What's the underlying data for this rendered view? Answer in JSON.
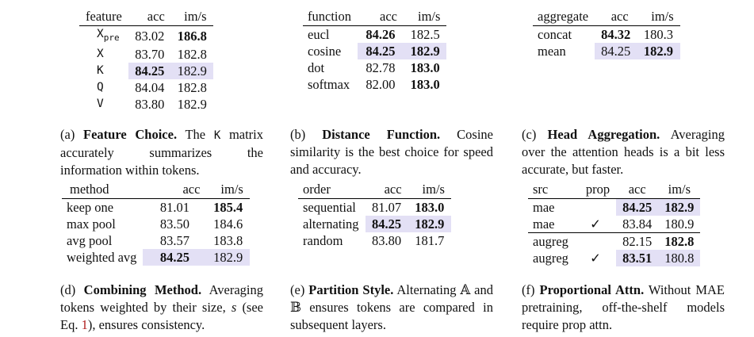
{
  "a": {
    "headers": [
      "feature",
      "acc",
      "im/s"
    ],
    "rows": [
      {
        "name": "X",
        "sub": "pre",
        "acc": "83.02",
        "ims": "186.8",
        "acc_bold": false,
        "ims_bold": true,
        "hl": false
      },
      {
        "name": "X",
        "sub": "",
        "acc": "83.70",
        "ims": "182.8",
        "acc_bold": false,
        "ims_bold": false,
        "hl": false
      },
      {
        "name": "K",
        "sub": "",
        "acc": "84.25",
        "ims": "182.9",
        "acc_bold": true,
        "ims_bold": false,
        "hl": true
      },
      {
        "name": "Q",
        "sub": "",
        "acc": "84.04",
        "ims": "182.8",
        "acc_bold": false,
        "ims_bold": false,
        "hl": false
      },
      {
        "name": "V",
        "sub": "",
        "acc": "83.80",
        "ims": "182.9",
        "acc_bold": false,
        "ims_bold": false,
        "hl": false
      }
    ],
    "cap_label": "(a)",
    "cap_title": "Feature Choice.",
    "cap_pre": "The",
    "cap_code": "K",
    "cap_post": "matrix accurately summarizes the information within tokens."
  },
  "b": {
    "headers": [
      "function",
      "acc",
      "im/s"
    ],
    "rows": [
      {
        "name": "eucl",
        "acc": "84.26",
        "ims": "182.5",
        "acc_bold": true,
        "ims_bold": false,
        "hl": false
      },
      {
        "name": "cosine",
        "acc": "84.25",
        "ims": "182.9",
        "acc_bold": true,
        "ims_bold": true,
        "hl": true
      },
      {
        "name": "dot",
        "acc": "82.78",
        "ims": "183.0",
        "acc_bold": false,
        "ims_bold": true,
        "hl": false
      },
      {
        "name": "softmax",
        "acc": "82.00",
        "ims": "183.0",
        "acc_bold": false,
        "ims_bold": true,
        "hl": false
      }
    ],
    "cap_label": "(b)",
    "cap_title": "Distance Function.",
    "cap_text": "Cosine similarity is the best choice for speed and accuracy."
  },
  "c": {
    "headers": [
      "aggregate",
      "acc",
      "im/s"
    ],
    "rows": [
      {
        "name": "concat",
        "acc": "84.32",
        "ims": "180.3",
        "acc_bold": true,
        "ims_bold": false,
        "hl": false
      },
      {
        "name": "mean",
        "acc": "84.25",
        "ims": "182.9",
        "acc_bold": false,
        "ims_bold": true,
        "hl": true
      }
    ],
    "cap_label": "(c)",
    "cap_title": "Head Aggregation.",
    "cap_text": "Averaging over the attention heads is a bit less accurate, but faster."
  },
  "d": {
    "headers": [
      "method",
      "acc",
      "im/s"
    ],
    "rows": [
      {
        "name": "keep one",
        "acc": "81.01",
        "ims": "185.4",
        "acc_bold": false,
        "ims_bold": true,
        "hl": false
      },
      {
        "name": "max pool",
        "acc": "83.50",
        "ims": "184.6",
        "acc_bold": false,
        "ims_bold": false,
        "hl": false
      },
      {
        "name": "avg pool",
        "acc": "83.57",
        "ims": "183.8",
        "acc_bold": false,
        "ims_bold": false,
        "hl": false
      },
      {
        "name": "weighted avg",
        "acc": "84.25",
        "ims": "182.9",
        "acc_bold": true,
        "ims_bold": false,
        "hl": true
      }
    ],
    "cap_label": "(d)",
    "cap_title": "Combining Method.",
    "cap_pre": "Averaging tokens weighted by their size,",
    "cap_var": "s",
    "cap_mid": "(see Eq.",
    "cap_ref": "1",
    "cap_post": "), ensures consistency."
  },
  "e": {
    "headers": [
      "order",
      "acc",
      "im/s"
    ],
    "rows": [
      {
        "name": "sequential",
        "acc": "81.07",
        "ims": "183.0",
        "acc_bold": false,
        "ims_bold": true,
        "hl": false
      },
      {
        "name": "alternating",
        "acc": "84.25",
        "ims": "182.9",
        "acc_bold": true,
        "ims_bold": true,
        "hl": true
      },
      {
        "name": "random",
        "acc": "83.80",
        "ims": "181.7",
        "acc_bold": false,
        "ims_bold": false,
        "hl": false
      }
    ],
    "cap_label": "(e)",
    "cap_title": "Partition Style.",
    "cap_text": "Alternating 𝔸 and 𝔹 ensures tokens are compared in subsequent layers."
  },
  "f": {
    "headers": [
      "src",
      "prop",
      "acc",
      "im/s"
    ],
    "rows": [
      {
        "name": "mae",
        "prop": "",
        "acc": "84.25",
        "ims": "182.9",
        "acc_bold": true,
        "ims_bold": true,
        "hl": true
      },
      {
        "name": "mae",
        "prop": "✓",
        "acc": "83.84",
        "ims": "180.9",
        "acc_bold": false,
        "ims_bold": false,
        "hl": false
      },
      {
        "name": "augreg",
        "prop": "",
        "acc": "82.15",
        "ims": "182.8",
        "acc_bold": false,
        "ims_bold": true,
        "hl": false
      },
      {
        "name": "augreg",
        "prop": "✓",
        "acc": "83.51",
        "ims": "180.8",
        "acc_bold": true,
        "ims_bold": false,
        "hl": true
      }
    ],
    "cap_label": "(f)",
    "cap_title": "Proportional Attn.",
    "cap_text": "Without MAE pretraining, off-the-shelf models require prop attn."
  }
}
